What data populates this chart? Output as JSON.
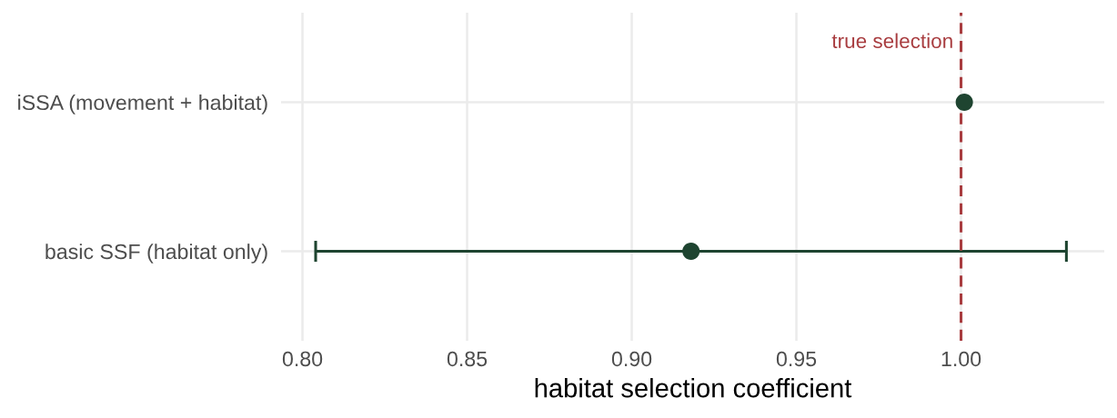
{
  "chart_data": {
    "type": "scatter",
    "orientation": "horizontal",
    "xlabel": "habitat selection coefficient",
    "categories": [
      "iSSA (movement + habitat)",
      "basic SSF (habitat only)"
    ],
    "values": [
      1.001,
      0.918
    ],
    "errors": [
      null,
      0.114
    ],
    "color": "#1e4430",
    "marker": "circle",
    "xlim": [
      0.7935,
      1.0435
    ],
    "xticks": [
      {
        "value": 0.8,
        "label": "0.80"
      },
      {
        "value": 0.85,
        "label": "0.85"
      },
      {
        "value": 0.9,
        "label": "0.90"
      },
      {
        "value": 0.95,
        "label": "0.95"
      },
      {
        "value": 1.0,
        "label": "1.00"
      }
    ],
    "ref_lines": [
      {
        "axis": "x",
        "value": 1.0,
        "label": "true selection",
        "color": "#a83c3f",
        "line_style": "dashed"
      }
    ],
    "grid": true
  }
}
